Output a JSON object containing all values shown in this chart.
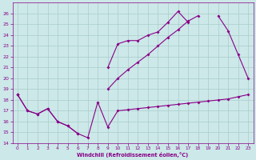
{
  "xlabel": "Windchill (Refroidissement éolien,°C)",
  "ylim": [
    14,
    27
  ],
  "xlim": [
    -0.5,
    23.5
  ],
  "yticks": [
    14,
    15,
    16,
    17,
    18,
    19,
    20,
    21,
    22,
    23,
    24,
    25,
    26
  ],
  "xticks": [
    0,
    1,
    2,
    3,
    4,
    5,
    6,
    7,
    8,
    9,
    10,
    11,
    12,
    13,
    14,
    15,
    16,
    17,
    18,
    19,
    20,
    21,
    22,
    23
  ],
  "line_color": "#880088",
  "bg_color": "#cce8e8",
  "grid_color": "#aacccc",
  "lines": [
    [
      18.5,
      17.0,
      16.7,
      17.2,
      16.0,
      15.6,
      14.9,
      14.5,
      17.8,
      15.5,
      17.0,
      17.1,
      17.2,
      17.3,
      17.4,
      17.5,
      17.6,
      17.7,
      17.8,
      17.9,
      18.0,
      18.1,
      18.3,
      18.5
    ],
    [
      18.5,
      17.0,
      16.7,
      17.2,
      16.0,
      15.6,
      14.9,
      null,
      null,
      null,
      null,
      null,
      null,
      null,
      null,
      null,
      null,
      null,
      null,
      null,
      null,
      null,
      null,
      null
    ],
    [
      null,
      null,
      null,
      null,
      null,
      null,
      null,
      null,
      null,
      21.0,
      23.2,
      23.5,
      23.5,
      24.0,
      24.3,
      25.2,
      26.2,
      25.2,
      null,
      null,
      null,
      null,
      null,
      null
    ],
    [
      18.5,
      null,
      null,
      null,
      null,
      null,
      null,
      null,
      null,
      19.0,
      20.0,
      20.8,
      21.5,
      22.2,
      23.0,
      23.8,
      24.5,
      25.3,
      25.8,
      null,
      25.8,
      24.4,
      22.2,
      20.0
    ]
  ],
  "linewidth": 0.8,
  "markersize": 2.0
}
